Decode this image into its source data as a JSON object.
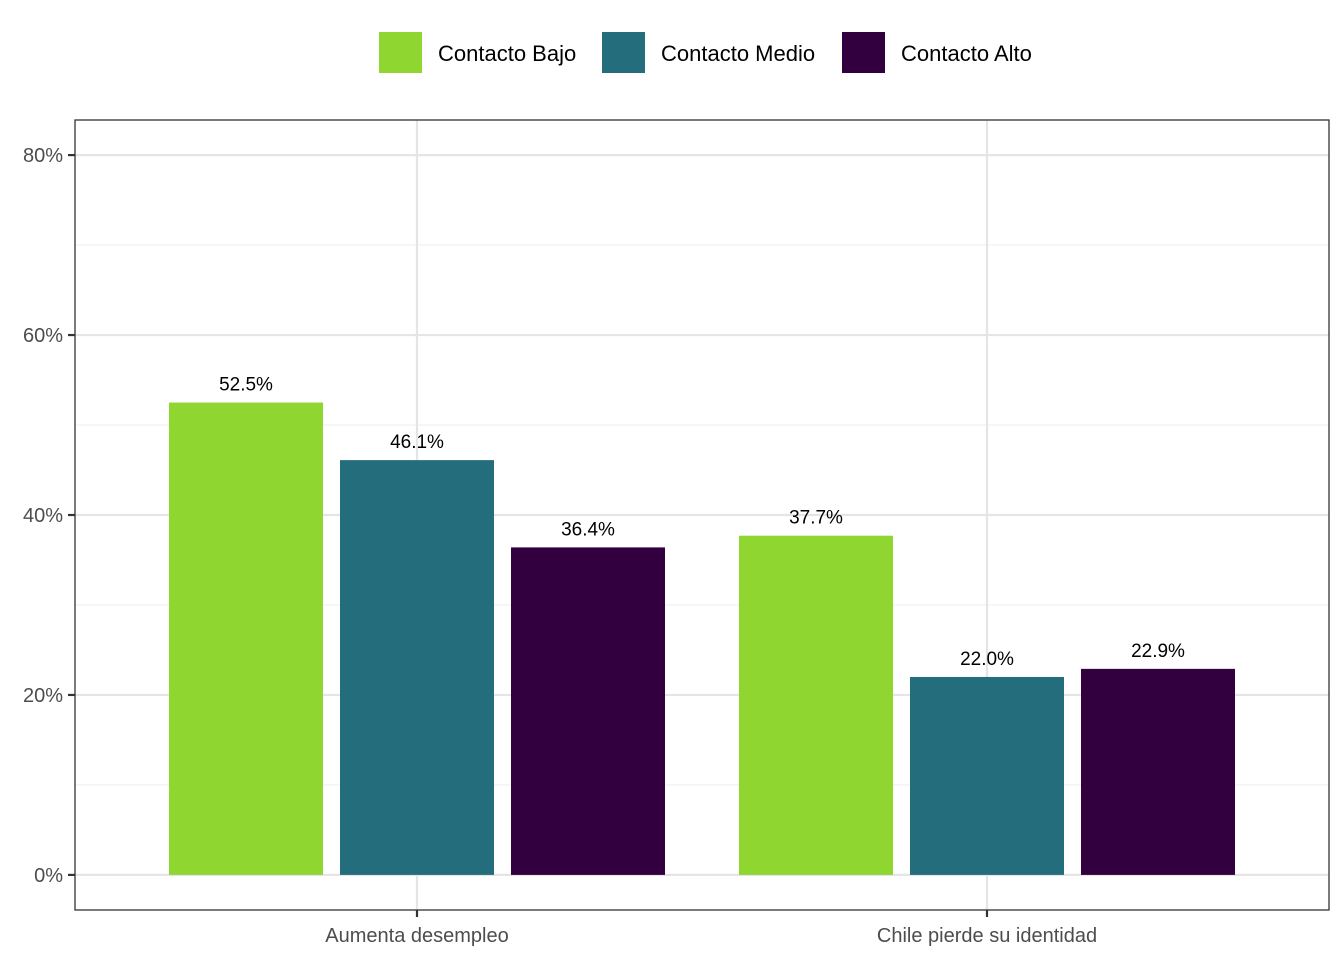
{
  "chart_data": {
    "type": "bar",
    "categories": [
      "Aumenta desempleo",
      "Chile pierde su identidad"
    ],
    "series": [
      {
        "name": "Contacto Bajo",
        "color": "#8FD631",
        "values": [
          52.5,
          37.7
        ],
        "labels": [
          "52.5%",
          "37.7%"
        ]
      },
      {
        "name": "Contacto Medio",
        "color": "#236D7C",
        "values": [
          46.1,
          22.0
        ],
        "labels": [
          "46.1%",
          "22.0%"
        ]
      },
      {
        "name": "Contacto Alto",
        "color": "#33003F",
        "values": [
          36.4,
          22.9
        ],
        "labels": [
          "36.4%",
          "22.9%"
        ]
      }
    ],
    "y_ticks": [
      0,
      20,
      40,
      60,
      80
    ],
    "y_tick_labels": [
      "0%",
      "20%",
      "40%",
      "60%",
      "80%"
    ],
    "ylim": [
      -3.9,
      83.9
    ],
    "title": "",
    "xlabel": "",
    "ylabel": "",
    "legend_position": "top",
    "grid": true
  }
}
